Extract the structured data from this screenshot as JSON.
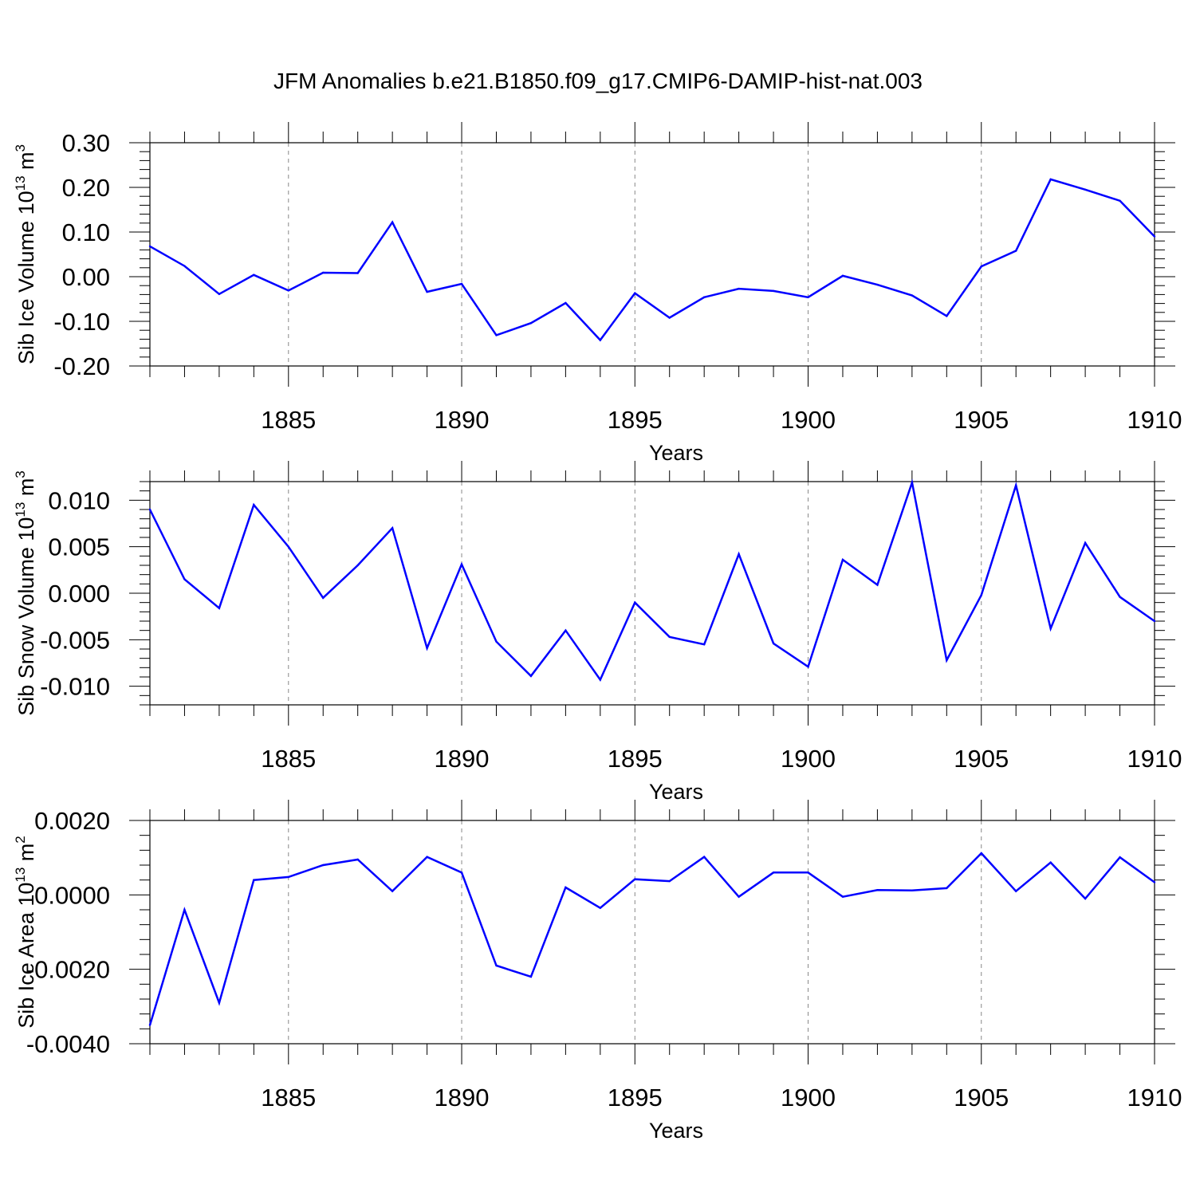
{
  "title": "JFM Anomalies b.e21.B1850.f09_g17.CMIP6-DAMIP-hist-nat.003",
  "colors": {
    "line": "#0000ff",
    "axis": "#000000",
    "grid": "#888888"
  },
  "chart_data": [
    {
      "type": "line",
      "name": "Sib Ice Volume",
      "ylabel": "Sib Ice Volume 10",
      "ylabel_exp": "13",
      "ylabel_unit": " m",
      "ylabel_unit_exp": "3",
      "xlabel": "Years",
      "xlim": [
        1881,
        1910
      ],
      "ylim": [
        -0.2,
        0.3
      ],
      "yticks": [
        -0.2,
        -0.1,
        0.0,
        0.1,
        0.2,
        0.3
      ],
      "yticklabels": [
        "-0.20",
        "-0.10",
        "0.00",
        "0.10",
        "0.20",
        "0.30"
      ],
      "yminor": 0.02,
      "xticks": [
        1885,
        1890,
        1895,
        1900,
        1905,
        1910
      ],
      "xticklabels": [
        "1885",
        "1890",
        "1895",
        "1900",
        "1905",
        "1910"
      ],
      "grid": "vertical-dashed",
      "x": [
        1881,
        1882,
        1883,
        1884,
        1885,
        1886,
        1887,
        1888,
        1889,
        1890,
        1891,
        1892,
        1893,
        1894,
        1895,
        1896,
        1897,
        1898,
        1899,
        1900,
        1901,
        1902,
        1903,
        1904,
        1905,
        1906,
        1907,
        1908,
        1909,
        1910
      ],
      "values": [
        0.068,
        0.024,
        -0.039,
        0.004,
        -0.031,
        0.009,
        0.008,
        0.122,
        -0.034,
        -0.016,
        -0.131,
        -0.104,
        -0.059,
        -0.142,
        -0.037,
        -0.092,
        -0.046,
        -0.027,
        -0.032,
        -0.046,
        0.002,
        -0.018,
        -0.042,
        -0.088,
        0.023,
        0.058,
        0.218,
        0.195,
        0.17,
        0.09
      ]
    },
    {
      "type": "line",
      "name": "Sib Snow Volume",
      "ylabel": "Sib Snow Volume 10",
      "ylabel_exp": "13",
      "ylabel_unit": " m",
      "ylabel_unit_exp": "3",
      "xlabel": "Years",
      "xlim": [
        1881,
        1910
      ],
      "ylim": [
        -0.012,
        0.012
      ],
      "yticks": [
        -0.01,
        -0.005,
        0.0,
        0.005,
        0.01
      ],
      "yticklabels": [
        "-0.010",
        "-0.005",
        "0.000",
        "0.005",
        "0.010"
      ],
      "yminor": 0.001,
      "xticks": [
        1885,
        1890,
        1895,
        1900,
        1905,
        1910
      ],
      "xticklabels": [
        "1885",
        "1890",
        "1895",
        "1900",
        "1905",
        "1910"
      ],
      "grid": "vertical-dashed",
      "x": [
        1881,
        1882,
        1883,
        1884,
        1885,
        1886,
        1887,
        1888,
        1889,
        1890,
        1891,
        1892,
        1893,
        1894,
        1895,
        1896,
        1897,
        1898,
        1899,
        1900,
        1901,
        1902,
        1903,
        1904,
        1905,
        1906,
        1907,
        1908,
        1909,
        1910
      ],
      "values": [
        0.009,
        0.0015,
        -0.0016,
        0.0095,
        0.005,
        -0.0005,
        0.003,
        0.007,
        -0.0059,
        0.0031,
        -0.0052,
        -0.0089,
        -0.004,
        -0.0093,
        -0.001,
        -0.0047,
        -0.0055,
        0.0042,
        -0.0054,
        -0.0079,
        0.0036,
        0.0009,
        0.0119,
        -0.0072,
        -0.0002,
        0.0116,
        -0.0038,
        0.0054,
        -0.0004,
        -0.003
      ]
    },
    {
      "type": "line",
      "name": "Sib Ice Area",
      "ylabel": "Sib Ice Area 10",
      "ylabel_exp": "13",
      "ylabel_unit": " m",
      "ylabel_unit_exp": "2",
      "xlabel": "Years",
      "xlim": [
        1881,
        1910
      ],
      "ylim": [
        -0.004,
        0.002
      ],
      "yticks": [
        -0.004,
        -0.002,
        0.0,
        0.002
      ],
      "yticklabels": [
        "-0.0040",
        "-0.0020",
        "0.0000",
        "0.0020"
      ],
      "yminor": 0.0004,
      "xticks": [
        1885,
        1890,
        1895,
        1900,
        1905,
        1910
      ],
      "xticklabels": [
        "1885",
        "1890",
        "1895",
        "1900",
        "1905",
        "1910"
      ],
      "grid": "vertical-dashed",
      "x": [
        1881,
        1882,
        1883,
        1884,
        1885,
        1886,
        1887,
        1888,
        1889,
        1890,
        1891,
        1892,
        1893,
        1894,
        1895,
        1896,
        1897,
        1898,
        1899,
        1900,
        1901,
        1902,
        1903,
        1904,
        1905,
        1906,
        1907,
        1908,
        1909,
        1910
      ],
      "values": [
        -0.0035,
        -0.0004,
        -0.0029,
        0.0004,
        0.00048,
        0.0008,
        0.00095,
        0.0001,
        0.00102,
        0.0006,
        -0.0019,
        -0.0022,
        0.0002,
        -0.00035,
        0.00042,
        0.00037,
        0.00102,
        -5e-05,
        0.0006,
        0.0006,
        -5e-05,
        0.00013,
        0.00012,
        0.00018,
        0.00112,
        0.0001,
        0.00087,
        -0.0001,
        0.00101,
        0.00034
      ]
    }
  ]
}
